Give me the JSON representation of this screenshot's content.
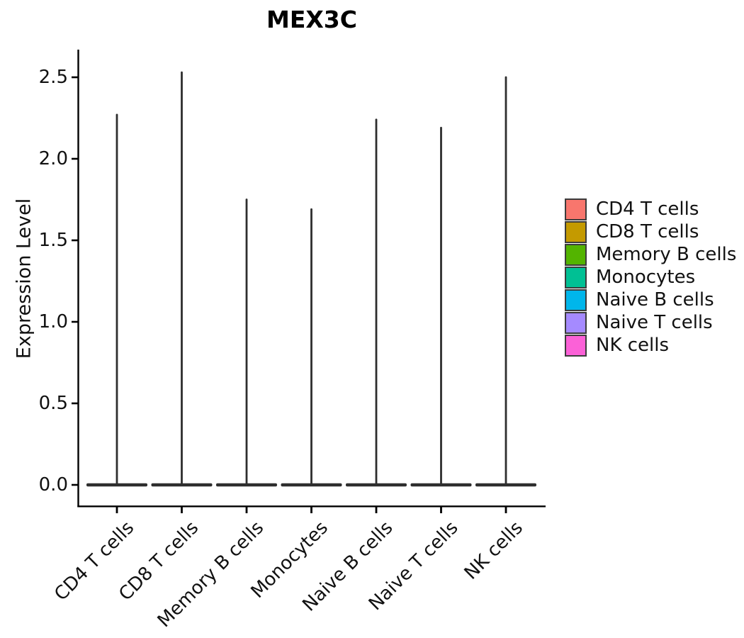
{
  "figure": {
    "background": "#ffffff",
    "text_color": "#111111",
    "axis_color": "#000000",
    "violin_outline_color": "#2e2e2e",
    "legend_key_border_color": "#3c3c3c"
  },
  "chart_data": {
    "type": "violin",
    "title": "MEX3C",
    "xlabel": "",
    "ylabel": "Expression Level",
    "categories": [
      "CD4 T cells",
      "CD8 T cells",
      "Memory B cells",
      "Monocytes",
      "Naive B cells",
      "Naive T cells",
      "NK cells"
    ],
    "y_tick_labels": [
      "0.0",
      "0.5",
      "1.0",
      "1.5",
      "2.0",
      "2.5"
    ],
    "y_tick_values": [
      0,
      0.5,
      1.0,
      1.5,
      2.0,
      2.5
    ],
    "ylim": [
      0,
      2.66
    ],
    "grid": false,
    "legend_position": "right",
    "x_tick_angle_deg": 45,
    "series": [
      {
        "name": "CD4 T cells",
        "color": "#F8766D",
        "max_expression": 2.27,
        "density_peak_at": 0.0
      },
      {
        "name": "CD8 T cells",
        "color": "#C49A00",
        "max_expression": 2.53,
        "density_peak_at": 0.0
      },
      {
        "name": "Memory B cells",
        "color": "#53B400",
        "max_expression": 1.75,
        "density_peak_at": 0.0
      },
      {
        "name": "Monocytes",
        "color": "#00C094",
        "max_expression": 1.69,
        "density_peak_at": 0.0
      },
      {
        "name": "Naive B cells",
        "color": "#00B6EB",
        "max_expression": 2.24,
        "density_peak_at": 0.0
      },
      {
        "name": "Naive T cells",
        "color": "#A58AFF",
        "max_expression": 2.19,
        "density_peak_at": 0.0
      },
      {
        "name": "NK cells",
        "color": "#FB61D7",
        "max_expression": 2.5,
        "density_peak_at": 0.0
      }
    ],
    "shape_note": "Each violin is collapsed: a wide flat base at expression 0 with a thin vertical spike rising to max_expression."
  }
}
